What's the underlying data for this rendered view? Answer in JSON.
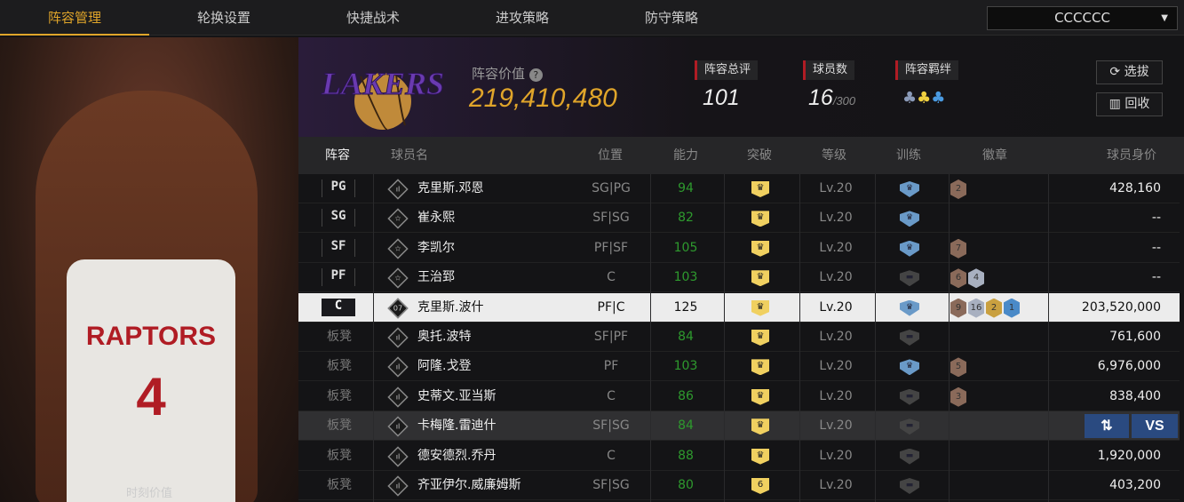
{
  "tabs": [
    "阵容管理",
    "轮换设置",
    "快捷战术",
    "进攻策略",
    "防守策略"
  ],
  "active_tab": 0,
  "team_select": {
    "value": "CCCCCC"
  },
  "left_panel": {
    "caption": "时刻价值"
  },
  "header": {
    "logo_text": "LAKERS",
    "value_label": "阵容价值",
    "value": "219,410,480",
    "rating_label": "阵容总评",
    "rating": "101",
    "players_label": "球员数",
    "players": "16",
    "players_max": "/300",
    "chem_label": "阵容羁绊",
    "select_btn": "选拔",
    "recycle_btn": "回收"
  },
  "columns": [
    "阵容",
    "球员名",
    "位置",
    "能力",
    "突破",
    "等级",
    "训练",
    "徽章",
    "球员身价"
  ],
  "colors": {
    "accent": "#e0a52a",
    "ability": "#2e9a2e",
    "action": "#2a4a80"
  },
  "rows": [
    {
      "slot": "PG",
      "starter": true,
      "icon": "bars",
      "name": "克里斯.邓恩",
      "pos": "SG|PG",
      "ability": "94",
      "breakthrough": "",
      "level": "Lv.20",
      "training": true,
      "badges": [
        [
          "2",
          "bronze"
        ]
      ],
      "value": "428,160"
    },
    {
      "slot": "SG",
      "starter": true,
      "icon": "star",
      "name": "崔永熙",
      "pos": "SF|SG",
      "ability": "82",
      "breakthrough": "",
      "level": "Lv.20",
      "training": true,
      "badges": [],
      "value": "--"
    },
    {
      "slot": "SF",
      "starter": true,
      "icon": "star",
      "name": "李凯尔",
      "pos": "PF|SF",
      "ability": "105",
      "breakthrough": "",
      "level": "Lv.20",
      "training": true,
      "badges": [
        [
          "7",
          "bronze"
        ]
      ],
      "value": "--"
    },
    {
      "slot": "PF",
      "starter": true,
      "icon": "star",
      "name": "王治郅",
      "pos": "C",
      "ability": "103",
      "breakthrough": "",
      "level": "Lv.20",
      "training": false,
      "badges": [
        [
          "6",
          "bronze"
        ],
        [
          "4",
          "silver"
        ]
      ],
      "value": "--"
    },
    {
      "slot": "C",
      "starter": true,
      "selected": true,
      "icon": "07",
      "name": "克里斯.波什",
      "pos": "PF|C",
      "ability": "125",
      "breakthrough": "",
      "level": "Lv.20",
      "training": true,
      "badges": [
        [
          "9",
          "bronze"
        ],
        [
          "16",
          "silver"
        ],
        [
          "2",
          "gold"
        ],
        [
          "1",
          "blue"
        ]
      ],
      "value": "203,520,000"
    },
    {
      "slot": "板凳",
      "icon": "bars",
      "name": "奥托.波特",
      "pos": "SF|PF",
      "ability": "84",
      "breakthrough": "",
      "level": "Lv.20",
      "training": false,
      "badges": [],
      "value": "761,600"
    },
    {
      "slot": "板凳",
      "icon": "bars",
      "name": "阿隆.戈登",
      "pos": "PF",
      "ability": "103",
      "breakthrough": "",
      "level": "Lv.20",
      "training": true,
      "badges": [
        [
          "5",
          "bronze"
        ]
      ],
      "value": "6,976,000"
    },
    {
      "slot": "板凳",
      "icon": "bars",
      "name": "史蒂文.亚当斯",
      "pos": "C",
      "ability": "86",
      "breakthrough": "",
      "level": "Lv.20",
      "training": false,
      "badges": [
        [
          "3",
          "bronze"
        ]
      ],
      "value": "838,400"
    },
    {
      "slot": "板凳",
      "hover": true,
      "icon": "bars",
      "name": "卡梅隆.雷迪什",
      "pos": "SF|SG",
      "ability": "84",
      "breakthrough": "",
      "level": "Lv.20",
      "training": false,
      "badges": [],
      "value": ""
    },
    {
      "slot": "板凳",
      "icon": "bars",
      "name": "德安德烈.乔丹",
      "pos": "C",
      "ability": "88",
      "breakthrough": "",
      "level": "Lv.20",
      "training": false,
      "badges": [],
      "value": "1,920,000"
    },
    {
      "slot": "板凳",
      "icon": "bars",
      "name": "齐亚伊尔.威廉姆斯",
      "pos": "SF|SG",
      "ability": "80",
      "breakthrough": "6",
      "level": "Lv.20",
      "training": false,
      "badges": [],
      "value": "403,200"
    }
  ],
  "row_actions": {
    "swap": "⇅",
    "vs": "VS"
  }
}
